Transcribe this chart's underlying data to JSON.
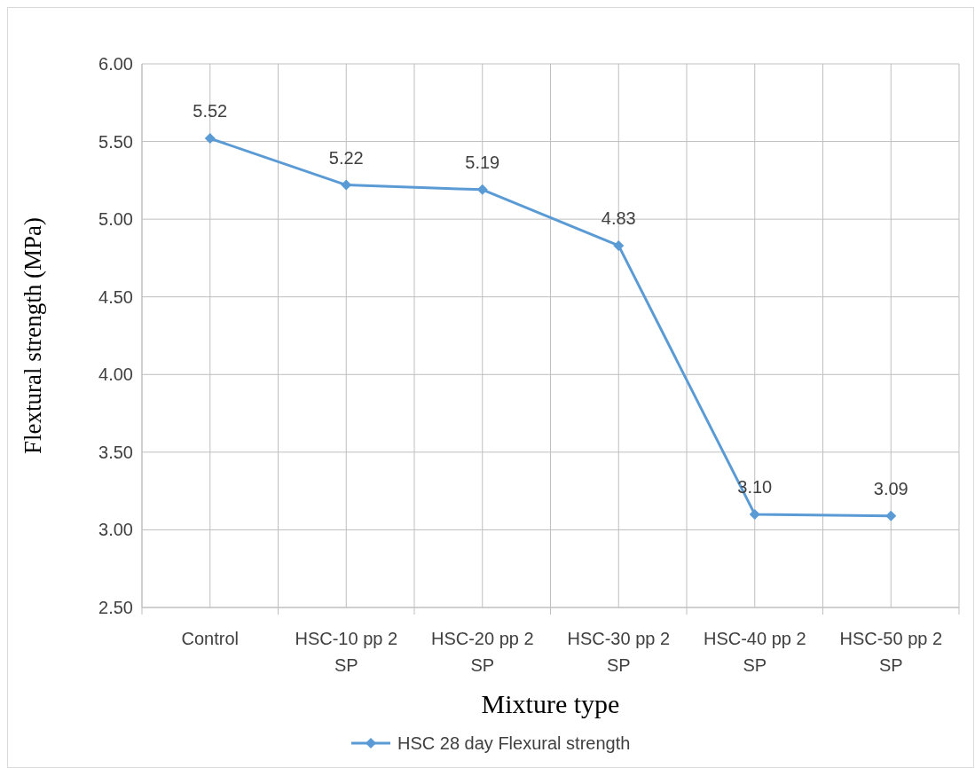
{
  "chart_data": {
    "type": "line",
    "xlabel": "Mixture type",
    "ylabel": "Flextural strength (MPa)",
    "categories": [
      "Control",
      "HSC-10 pp 2 SP",
      "HSC-20 pp 2 SP",
      "HSC-30 pp 2 SP",
      "HSC-40 pp 2 SP",
      "HSC-50 pp 2 SP"
    ],
    "series": [
      {
        "name": "HSC 28 day Flexural strength",
        "color": "#5b9bd5",
        "values": [
          5.52,
          5.22,
          5.19,
          4.83,
          3.1,
          3.09
        ],
        "value_labels": [
          "5.52",
          "5.22",
          "5.19",
          "4.83",
          "3.10",
          "3.09"
        ]
      }
    ],
    "ylim": [
      2.5,
      6
    ],
    "yticks": [
      {
        "value": 2.5,
        "label": "2.50"
      },
      {
        "value": 3,
        "label": "3.00"
      },
      {
        "value": 3.5,
        "label": "3.50"
      },
      {
        "value": 4,
        "label": "4.00"
      },
      {
        "value": 4.5,
        "label": "4.50"
      },
      {
        "value": 5,
        "label": "5.00"
      },
      {
        "value": 5.5,
        "label": "5.50"
      },
      {
        "value": 6,
        "label": "6.00"
      }
    ],
    "grid": true,
    "legend": "bottom",
    "marker": "diamond",
    "line_style": "solid"
  }
}
